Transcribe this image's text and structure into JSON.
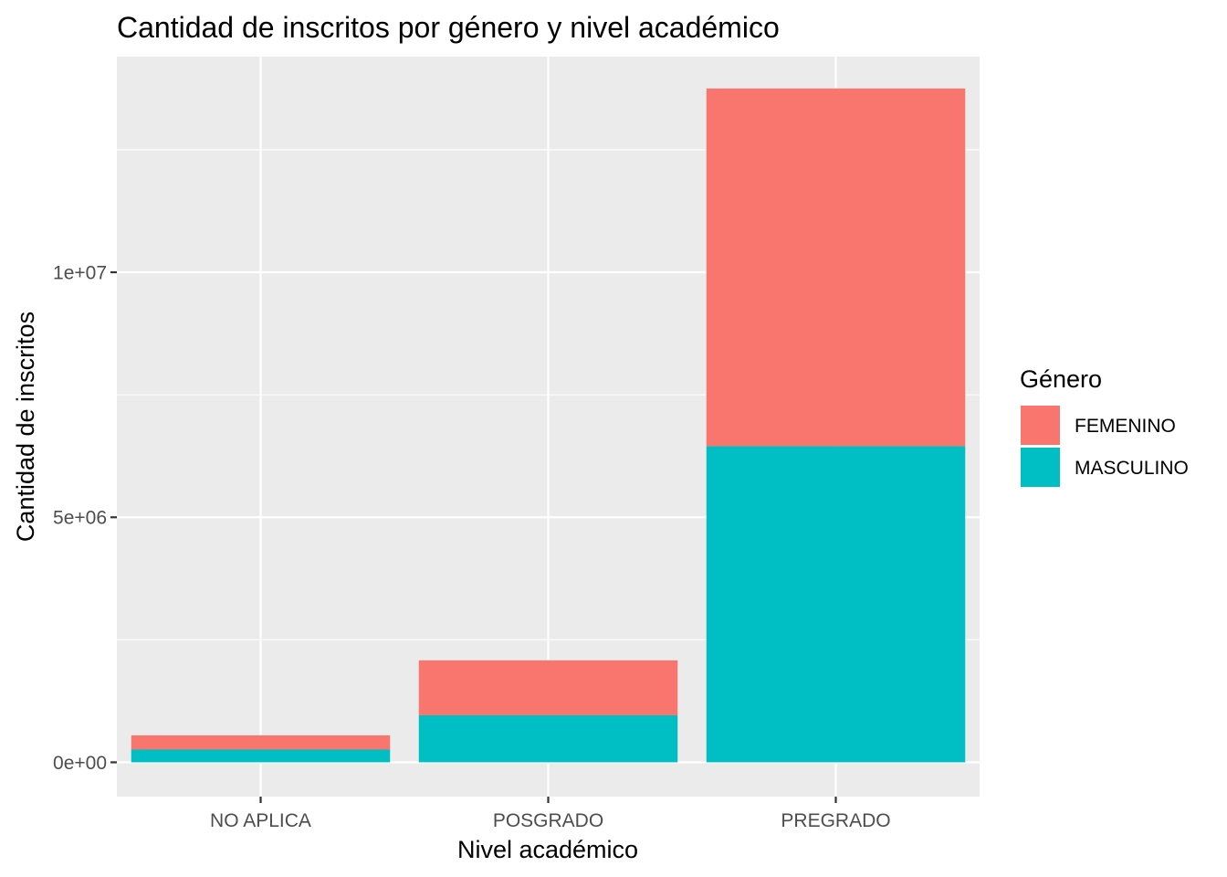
{
  "chart_data": {
    "type": "bar",
    "stacked": true,
    "title": "Cantidad de inscritos por género y nivel académico",
    "xlabel": "Nivel académico",
    "ylabel": "Cantidad de inscritos",
    "categories": [
      "NO APLICA",
      "POSGRADO",
      "PREGRADO"
    ],
    "series": [
      {
        "name": "MASCULINO",
        "color": "#00BFC4",
        "values": [
          260000,
          960000,
          6450000
        ]
      },
      {
        "name": "FEMENINO",
        "color": "#F8766D",
        "values": [
          290000,
          1120000,
          7300000
        ]
      }
    ],
    "ylim": [
      -700000,
      14400000
    ],
    "y_ticks": [
      {
        "value": 0,
        "label": "0e+00"
      },
      {
        "value": 5000000,
        "label": "5e+06"
      },
      {
        "value": 10000000,
        "label": "1e+07"
      }
    ],
    "y_minor_ticks": [
      2500000,
      7500000,
      12500000
    ],
    "grid": true,
    "legend": {
      "title": "Género",
      "position": "right",
      "items": [
        {
          "name": "FEMENINO",
          "color": "#F8766D"
        },
        {
          "name": "MASCULINO",
          "color": "#00BFC4"
        }
      ]
    },
    "colors": {
      "panel_background": "#EBEBEB",
      "grid": "#FFFFFF"
    }
  }
}
